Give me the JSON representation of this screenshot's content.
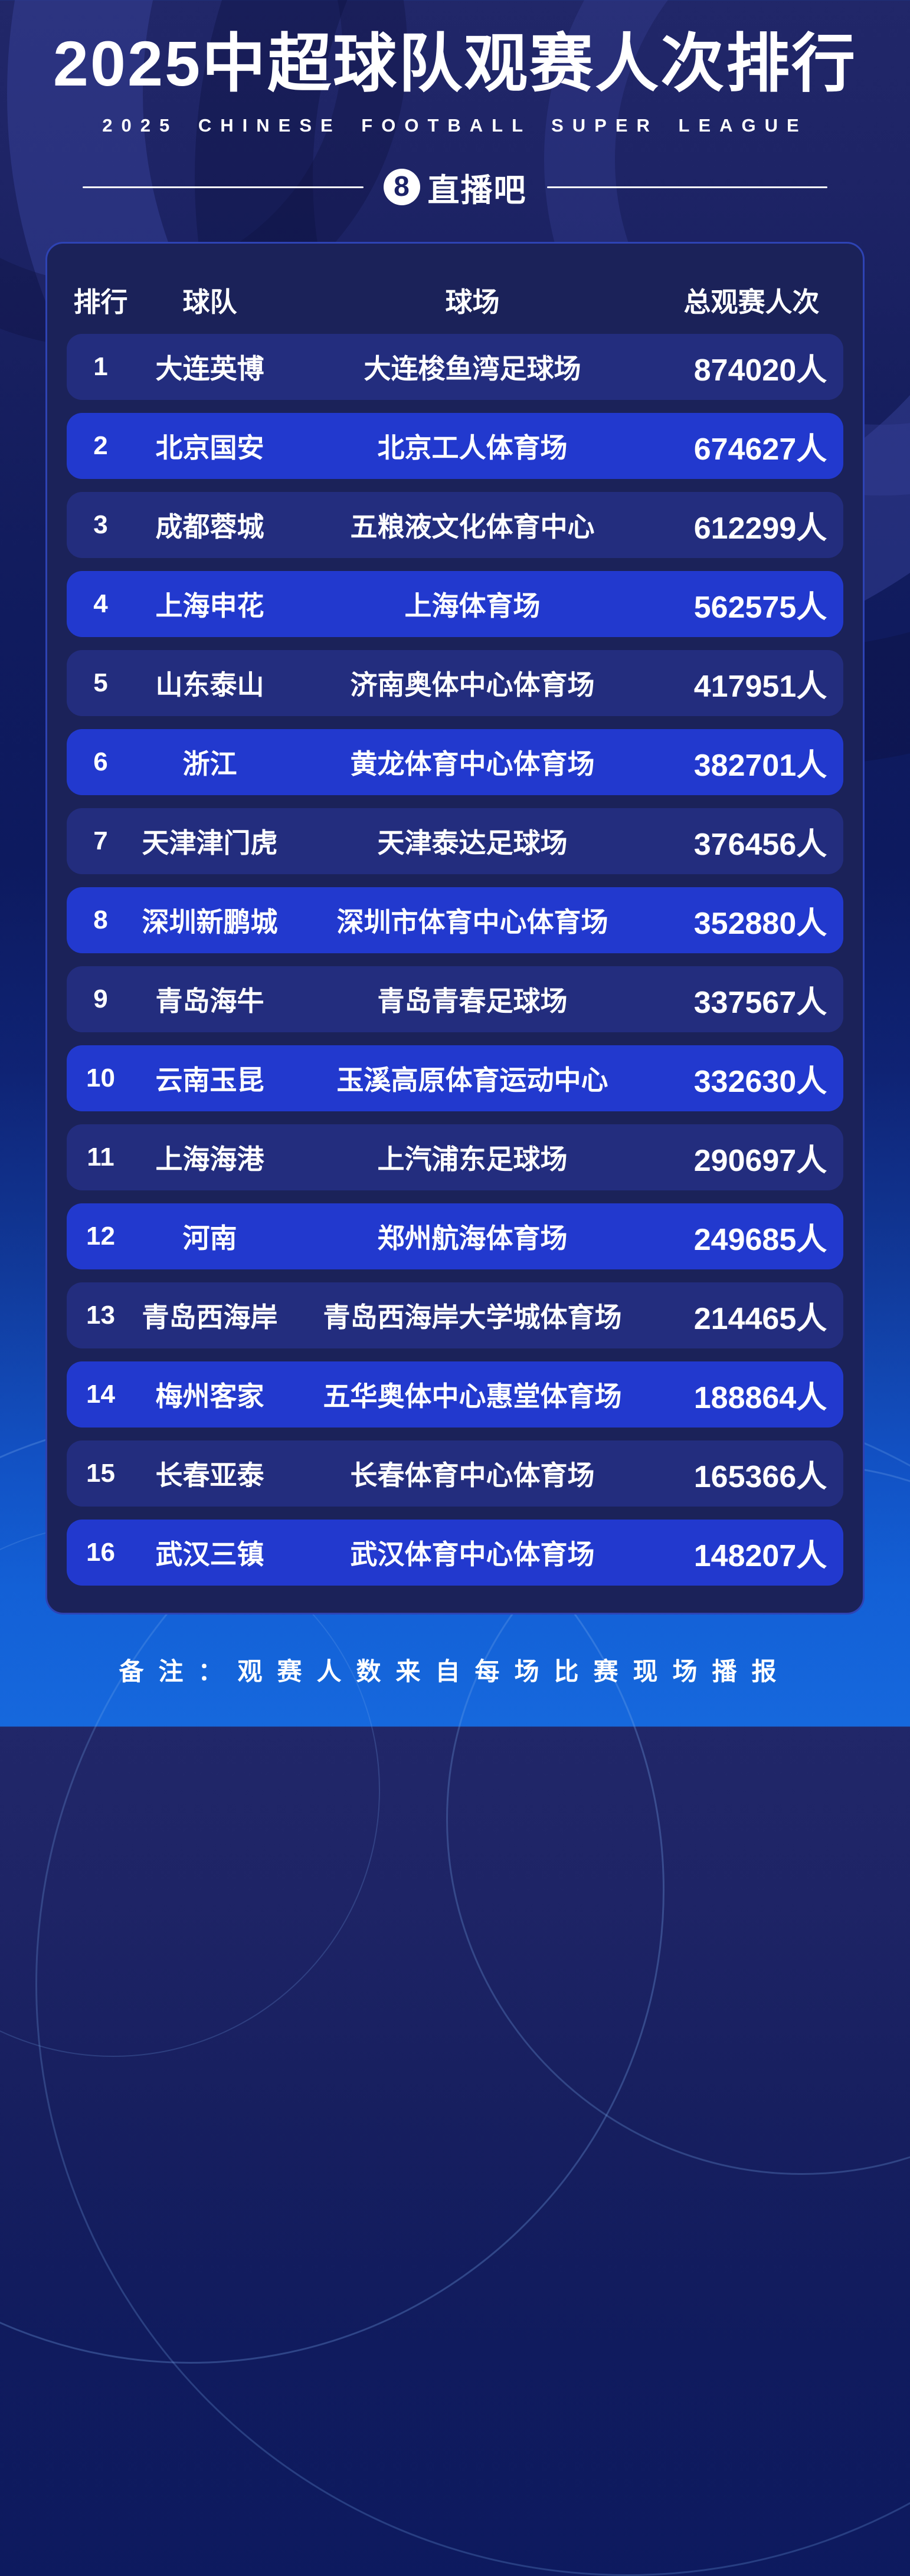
{
  "header": {
    "title": "2025中超球队观赛人次排行",
    "subtitle": "2025 CHINESE FOOTBALL SUPER LEAGUE",
    "logo_mark": "8",
    "logo_text": "直播吧"
  },
  "table": {
    "columns": {
      "rank": "排行",
      "team": "球队",
      "stadium": "球场",
      "attendance": "总观赛人次"
    },
    "rows": [
      {
        "rank": "1",
        "team": "大连英博",
        "stadium": "大连梭鱼湾足球场",
        "attendance": "874020人"
      },
      {
        "rank": "2",
        "team": "北京国安",
        "stadium": "北京工人体育场",
        "attendance": "674627人"
      },
      {
        "rank": "3",
        "team": "成都蓉城",
        "stadium": "五粮液文化体育中心",
        "attendance": "612299人"
      },
      {
        "rank": "4",
        "team": "上海申花",
        "stadium": "上海体育场",
        "attendance": "562575人"
      },
      {
        "rank": "5",
        "team": "山东泰山",
        "stadium": "济南奥体中心体育场",
        "attendance": "417951人"
      },
      {
        "rank": "6",
        "team": "浙江",
        "stadium": "黄龙体育中心体育场",
        "attendance": "382701人"
      },
      {
        "rank": "7",
        "team": "天津津门虎",
        "stadium": "天津泰达足球场",
        "attendance": "376456人"
      },
      {
        "rank": "8",
        "team": "深圳新鹏城",
        "stadium": "深圳市体育中心体育场",
        "attendance": "352880人"
      },
      {
        "rank": "9",
        "team": "青岛海牛",
        "stadium": "青岛青春足球场",
        "attendance": "337567人"
      },
      {
        "rank": "10",
        "team": "云南玉昆",
        "stadium": "玉溪高原体育运动中心",
        "attendance": "332630人"
      },
      {
        "rank": "11",
        "team": "上海海港",
        "stadium": "上汽浦东足球场",
        "attendance": "290697人"
      },
      {
        "rank": "12",
        "team": "河南",
        "stadium": "郑州航海体育场",
        "attendance": "249685人"
      },
      {
        "rank": "13",
        "team": "青岛西海岸",
        "stadium": "青岛西海岸大学城体育场",
        "attendance": "214465人"
      },
      {
        "rank": "14",
        "team": "梅州客家",
        "stadium": "五华奥体中心惠堂体育场",
        "attendance": "188864人"
      },
      {
        "rank": "15",
        "team": "长春亚泰",
        "stadium": "长春体育中心体育场",
        "attendance": "165366人"
      },
      {
        "rank": "16",
        "team": "武汉三镇",
        "stadium": "武汉体育中心体育场",
        "attendance": "148207人"
      }
    ]
  },
  "footer": {
    "note": "备注：观赛人数来自每场比赛现场播报"
  },
  "colors": {
    "background_top": "#212769",
    "background_bottom": "#1668dd",
    "panel_bg": "#1b2259",
    "panel_border": "#2e43b4",
    "row_dark": "#232d7e",
    "row_bright": "#2239ce",
    "text": "#ffffff",
    "logo_mark_text": "#1b2268"
  },
  "chart_data": {
    "type": "table",
    "title": "2025中超球队观赛人次排行",
    "subtitle": "2025 CHINESE FOOTBALL SUPER LEAGUE",
    "columns": [
      "排行",
      "球队",
      "球场",
      "总观赛人次"
    ],
    "rows": [
      [
        1,
        "大连英博",
        "大连梭鱼湾足球场",
        874020
      ],
      [
        2,
        "北京国安",
        "北京工人体育场",
        674627
      ],
      [
        3,
        "成都蓉城",
        "五粮液文化体育中心",
        612299
      ],
      [
        4,
        "上海申花",
        "上海体育场",
        562575
      ],
      [
        5,
        "山东泰山",
        "济南奥体中心体育场",
        417951
      ],
      [
        6,
        "浙江",
        "黄龙体育中心体育场",
        382701
      ],
      [
        7,
        "天津津门虎",
        "天津泰达足球场",
        376456
      ],
      [
        8,
        "深圳新鹏城",
        "深圳市体育中心体育场",
        352880
      ],
      [
        9,
        "青岛海牛",
        "青岛青春足球场",
        337567
      ],
      [
        10,
        "云南玉昆",
        "玉溪高原体育运动中心",
        332630
      ],
      [
        11,
        "上海海港",
        "上汽浦东足球场",
        290697
      ],
      [
        12,
        "河南",
        "郑州航海体育场",
        249685
      ],
      [
        13,
        "青岛西海岸",
        "青岛西海岸大学城体育场",
        214465
      ],
      [
        14,
        "梅州客家",
        "五华奥体中心惠堂体育场",
        188864
      ],
      [
        15,
        "长春亚泰",
        "长春体育中心体育场",
        165366
      ],
      [
        16,
        "武汉三镇",
        "武汉体育中心体育场",
        148207
      ]
    ],
    "value_unit": "人",
    "note": "备注：观赛人数来自每场比赛现场播报"
  }
}
